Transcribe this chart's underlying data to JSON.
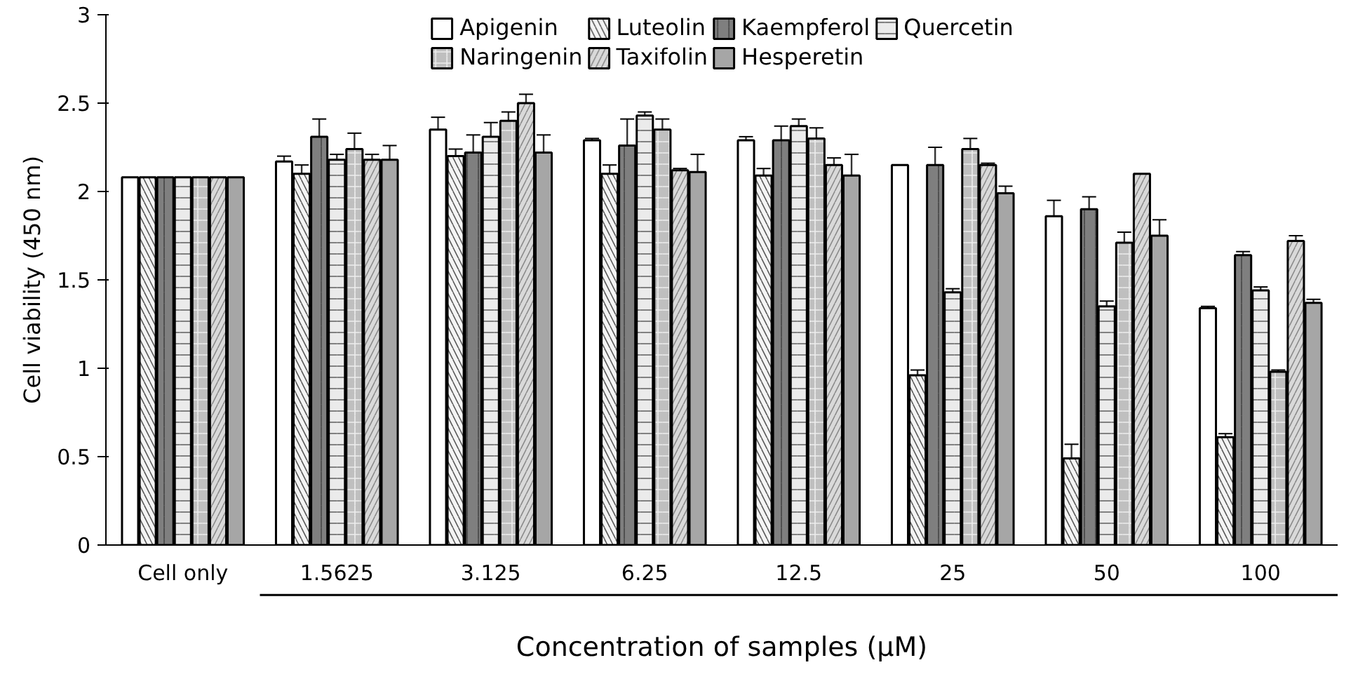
{
  "chart_data": {
    "type": "bar",
    "xlabel": "Concentration of samples (μM)",
    "ylabel": "Cell viability (450 nm)",
    "categories": [
      "Cell only",
      "1.5625",
      "3.125",
      "6.25",
      "12.5",
      "25",
      "50",
      "100"
    ],
    "series": [
      {
        "name": "Apigenin",
        "color": "#ffffff",
        "values": [
          2.08,
          2.17,
          2.35,
          2.29,
          2.29,
          2.15,
          1.86,
          1.34
        ],
        "errors": [
          null,
          0.03,
          0.07,
          0.01,
          0.02,
          null,
          0.09,
          0.01
        ]
      },
      {
        "name": "Luteolin",
        "color": "#f4f4f4",
        "values": [
          2.08,
          2.1,
          2.2,
          2.1,
          2.09,
          0.96,
          0.49,
          0.61
        ],
        "errors": [
          null,
          0.05,
          0.04,
          0.05,
          0.04,
          0.03,
          0.08,
          0.02
        ]
      },
      {
        "name": "Kaempferol",
        "color": "#7f7f7f",
        "values": [
          2.08,
          2.31,
          2.22,
          2.26,
          2.29,
          2.15,
          1.9,
          1.64
        ],
        "errors": [
          null,
          0.1,
          0.1,
          0.15,
          0.08,
          0.1,
          0.07,
          0.02
        ]
      },
      {
        "name": "Quercetin",
        "color": "#ebebeb",
        "values": [
          2.08,
          2.18,
          2.31,
          2.43,
          2.37,
          1.43,
          1.35,
          1.44
        ],
        "errors": [
          null,
          0.03,
          0.08,
          0.02,
          0.04,
          0.02,
          0.03,
          0.02
        ]
      },
      {
        "name": "Naringenin",
        "color": "#bfbfbf",
        "values": [
          2.08,
          2.24,
          2.4,
          2.35,
          2.3,
          2.24,
          1.71,
          0.98
        ],
        "errors": [
          null,
          0.09,
          0.05,
          0.06,
          0.06,
          0.06,
          0.06,
          0.01
        ]
      },
      {
        "name": "Taxifolin",
        "color": "#d9d9d9",
        "values": [
          2.08,
          2.18,
          2.5,
          2.12,
          2.15,
          2.15,
          2.1,
          1.72
        ],
        "errors": [
          null,
          0.03,
          0.05,
          0.01,
          0.04,
          0.01,
          null,
          0.03
        ]
      },
      {
        "name": "Hesperetin",
        "color": "#a6a6a6",
        "values": [
          2.08,
          2.18,
          2.22,
          2.11,
          2.09,
          1.99,
          1.75,
          1.37
        ],
        "errors": [
          null,
          0.08,
          0.1,
          0.1,
          0.12,
          0.04,
          0.09,
          0.02
        ]
      }
    ],
    "ylim": [
      0,
      3
    ],
    "yticks": [
      0,
      0.5,
      1,
      1.5,
      2,
      2.5,
      3
    ],
    "grid": false,
    "legend": "top"
  }
}
